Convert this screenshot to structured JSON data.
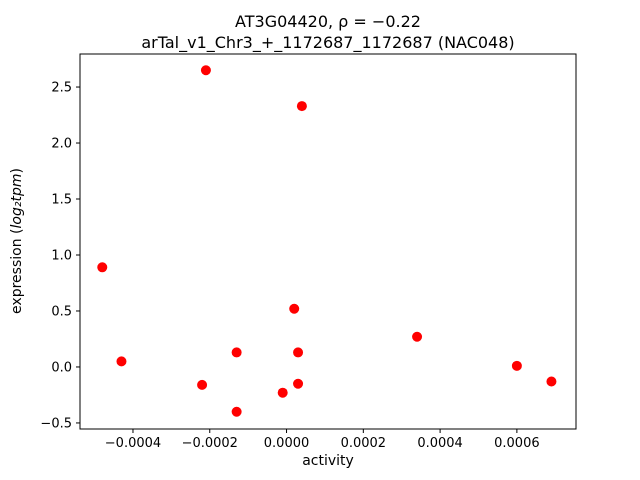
{
  "chart_data": {
    "type": "scatter",
    "title_line1": "AT3G04420, ρ = −0.22",
    "title_line2": "arTal_v1_Chr3_+_1172687_1172687 (NAC048)",
    "xlabel": "activity",
    "ylabel_prefix": "expression (",
    "ylabel_math": "log₂tpm",
    "ylabel_suffix": ")",
    "marker_color": "#ff0000",
    "frame_color": "#000000",
    "grid": false,
    "legend": "none",
    "xlim": [
      -0.000538,
      0.000754
    ],
    "ylim": [
      -0.554,
      2.795
    ],
    "xticks": {
      "values": [
        -0.0004,
        -0.0002,
        0.0,
        0.0002,
        0.0004,
        0.0006
      ],
      "labels": [
        "−0.0004",
        "−0.0002",
        "0.0000",
        "0.0002",
        "0.0004",
        "0.0006"
      ]
    },
    "yticks": {
      "values": [
        -0.5,
        0.0,
        0.5,
        1.0,
        1.5,
        2.0,
        2.5
      ],
      "labels": [
        "−0.5",
        "0.0",
        "0.5",
        "1.0",
        "1.5",
        "2.0",
        "2.5"
      ]
    },
    "points": [
      {
        "x": -0.00048,
        "y": 0.89
      },
      {
        "x": -0.00043,
        "y": 0.05
      },
      {
        "x": -0.00021,
        "y": 2.65
      },
      {
        "x": -0.00022,
        "y": -0.16
      },
      {
        "x": -0.00013,
        "y": 0.13
      },
      {
        "x": -0.00013,
        "y": -0.4
      },
      {
        "x": -1e-05,
        "y": -0.23
      },
      {
        "x": 4e-05,
        "y": 2.33
      },
      {
        "x": 2e-05,
        "y": 0.52
      },
      {
        "x": 3e-05,
        "y": 0.13
      },
      {
        "x": 3e-05,
        "y": -0.15
      },
      {
        "x": 0.00034,
        "y": 0.27
      },
      {
        "x": 0.0006,
        "y": 0.01
      },
      {
        "x": 0.00069,
        "y": -0.13
      }
    ]
  }
}
